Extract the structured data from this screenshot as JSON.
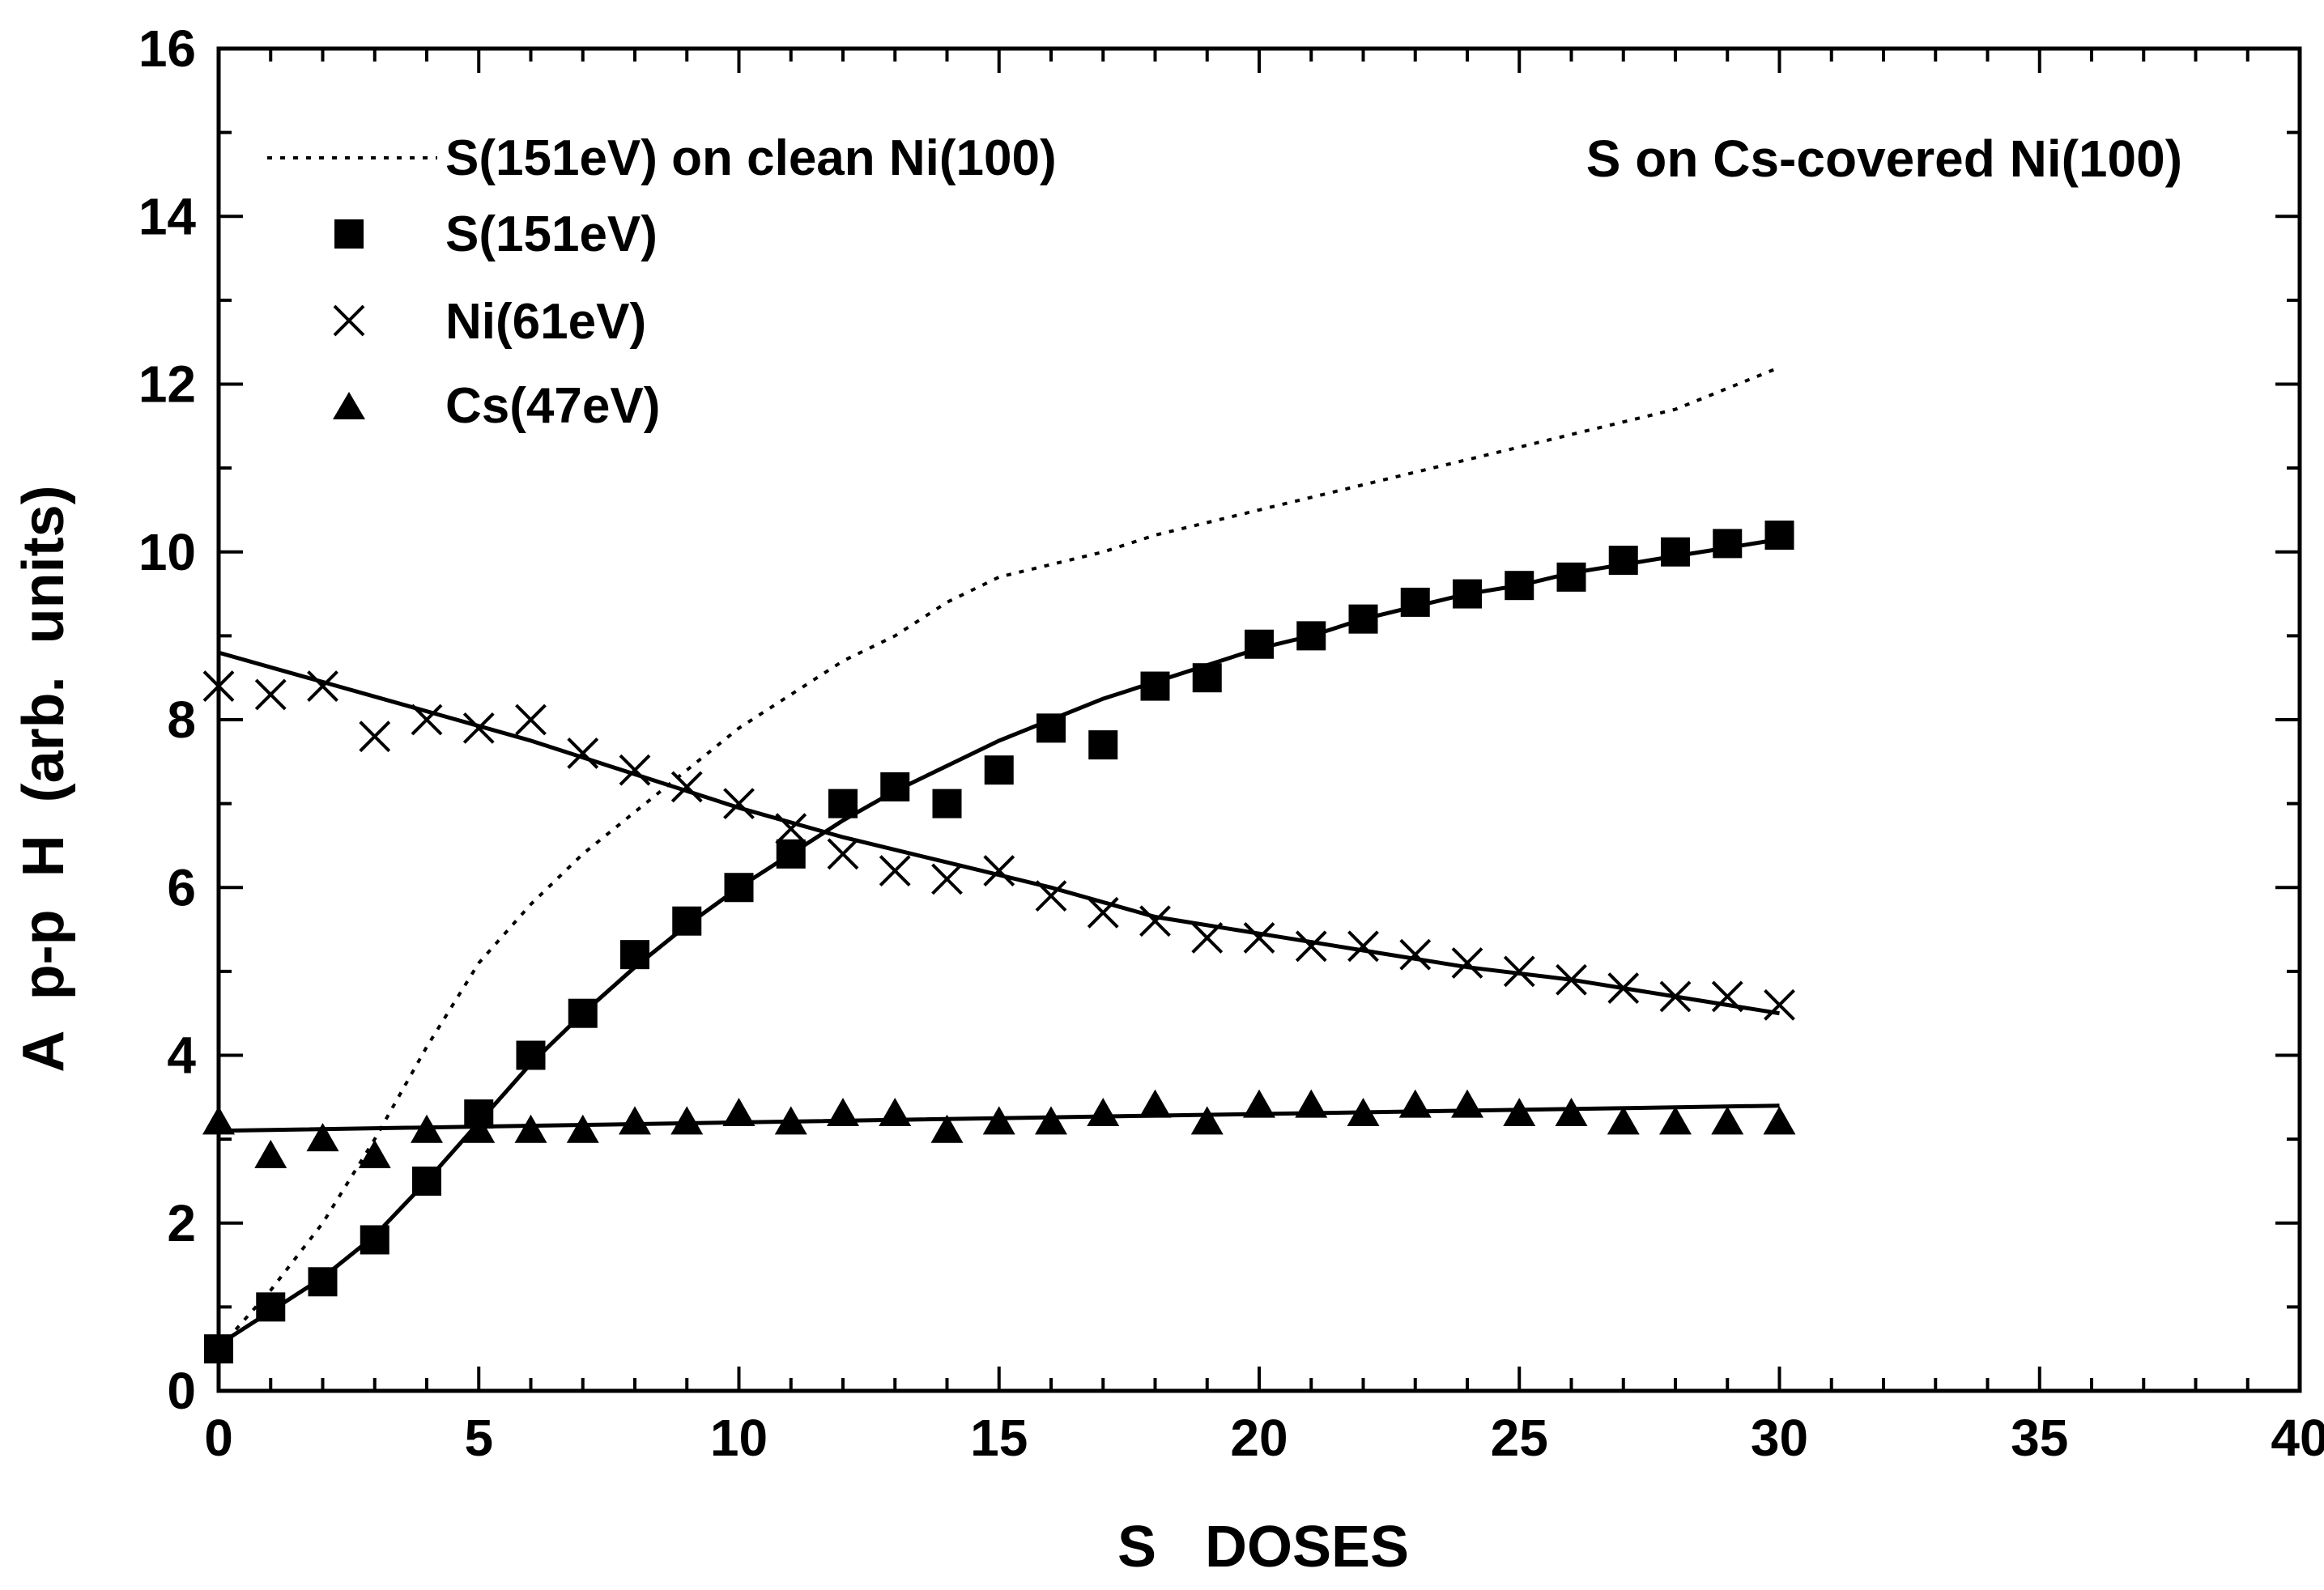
{
  "chart_data": {
    "type": "scatter",
    "title": "",
    "annotation": "S on Cs-covered Ni(100)",
    "xlabel": "S   DOSES",
    "ylabel": "A  p-p  H  (arb.  units)",
    "xlim": [
      0,
      40
    ],
    "ylim": [
      0,
      16
    ],
    "x_ticks": [
      0,
      5,
      10,
      15,
      20,
      25,
      30,
      35,
      40
    ],
    "y_ticks": [
      0,
      2,
      4,
      6,
      8,
      10,
      12,
      14,
      16
    ],
    "x_tick_labels": [
      "0",
      "5",
      "10",
      "15",
      "20",
      "25",
      "30",
      "35",
      "40"
    ],
    "y_tick_labels": [
      "0",
      "2",
      "4",
      "6",
      "8",
      "10",
      "12",
      "14",
      "16"
    ],
    "legend_position": "top-left",
    "series": [
      {
        "name": "S(151eV) on clean Ni(100)",
        "kind": "dotted-line",
        "x": [
          0,
          1,
          2,
          3,
          4,
          5,
          6,
          7,
          8,
          9,
          10,
          11,
          12,
          13,
          14,
          15,
          16,
          17,
          18,
          19,
          20,
          22,
          24,
          26,
          28,
          30
        ],
        "values": [
          0.5,
          1.2,
          2.0,
          3.0,
          4.1,
          5.1,
          5.8,
          6.4,
          6.9,
          7.4,
          7.9,
          8.3,
          8.7,
          9.0,
          9.4,
          9.7,
          9.85,
          10.0,
          10.2,
          10.35,
          10.5,
          10.8,
          11.1,
          11.4,
          11.7,
          12.2
        ]
      },
      {
        "name": "S(151eV)",
        "kind": "filled-square",
        "x": [
          0,
          1,
          2,
          3,
          4,
          5,
          6,
          7,
          8,
          9,
          10,
          11,
          12,
          13,
          14,
          15,
          16,
          17,
          18,
          19,
          20,
          21,
          22,
          23,
          24,
          25,
          26,
          27,
          28,
          29,
          30
        ],
        "values": [
          0.5,
          1.0,
          1.3,
          1.8,
          2.5,
          3.3,
          4.0,
          4.5,
          5.2,
          5.6,
          6.0,
          6.4,
          7.0,
          7.2,
          7.0,
          7.4,
          7.9,
          7.7,
          8.4,
          8.5,
          8.9,
          9.0,
          9.2,
          9.4,
          9.5,
          9.6,
          9.7,
          9.9,
          10.0,
          10.1,
          10.2
        ],
        "fit_x": [
          0,
          1,
          2,
          3,
          4,
          5,
          6,
          7,
          8,
          9,
          10,
          11,
          12,
          13,
          14,
          15,
          16,
          17,
          18,
          19,
          20,
          21,
          22,
          23,
          24,
          25,
          26,
          27,
          28,
          29,
          30
        ],
        "fit_values": [
          0.55,
          0.95,
          1.35,
          1.85,
          2.5,
          3.2,
          3.9,
          4.5,
          5.05,
          5.55,
          6.0,
          6.4,
          6.8,
          7.15,
          7.45,
          7.75,
          8.0,
          8.25,
          8.45,
          8.65,
          8.85,
          9.0,
          9.2,
          9.35,
          9.5,
          9.6,
          9.75,
          9.85,
          9.95,
          10.05,
          10.15
        ]
      },
      {
        "name": "Ni(61eV)",
        "kind": "cross",
        "x": [
          0,
          1,
          2,
          3,
          4,
          5,
          6,
          7,
          8,
          9,
          10,
          11,
          12,
          13,
          14,
          15,
          16,
          17,
          18,
          19,
          20,
          21,
          22,
          23,
          24,
          25,
          26,
          27,
          28,
          29,
          30
        ],
        "values": [
          8.4,
          8.3,
          8.4,
          7.8,
          8.0,
          7.9,
          8.0,
          7.6,
          7.4,
          7.2,
          7.0,
          6.7,
          6.4,
          6.2,
          6.1,
          6.2,
          5.9,
          5.7,
          5.6,
          5.4,
          5.4,
          5.3,
          5.3,
          5.2,
          5.1,
          5.0,
          4.9,
          4.8,
          4.7,
          4.7,
          4.6
        ],
        "fit_x": [
          0,
          2,
          4,
          6,
          8,
          10,
          12,
          14,
          16,
          18,
          20,
          22,
          24,
          26,
          28,
          30
        ],
        "fit_values": [
          8.8,
          8.45,
          8.1,
          7.75,
          7.35,
          6.95,
          6.6,
          6.3,
          6.0,
          5.65,
          5.45,
          5.25,
          5.05,
          4.9,
          4.7,
          4.5
        ]
      },
      {
        "name": "Cs(47eV)",
        "kind": "filled-triangle",
        "x": [
          0,
          1,
          2,
          3,
          4,
          5,
          6,
          7,
          8,
          9,
          10,
          11,
          12,
          13,
          14,
          15,
          16,
          17,
          18,
          19,
          20,
          21,
          22,
          23,
          24,
          25,
          26,
          27,
          28,
          29,
          30
        ],
        "values": [
          3.2,
          2.8,
          3.0,
          2.8,
          3.1,
          3.1,
          3.1,
          3.1,
          3.2,
          3.2,
          3.3,
          3.2,
          3.3,
          3.3,
          3.1,
          3.2,
          3.2,
          3.3,
          3.4,
          3.2,
          3.4,
          3.4,
          3.3,
          3.4,
          3.4,
          3.3,
          3.3,
          3.2,
          3.2,
          3.2,
          3.2
        ],
        "fit_x": [
          0,
          10,
          20,
          30
        ],
        "fit_values": [
          3.1,
          3.2,
          3.3,
          3.4
        ]
      }
    ]
  }
}
